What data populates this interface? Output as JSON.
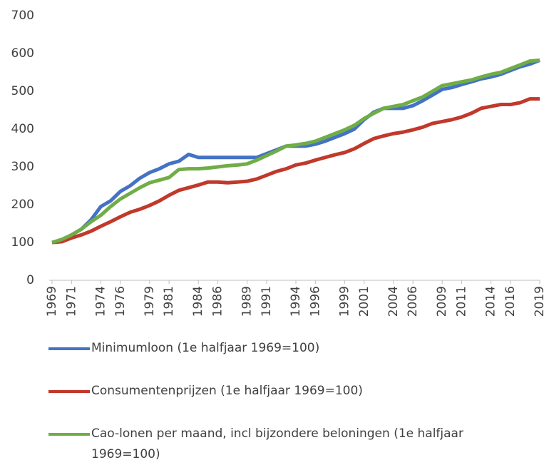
{
  "chart_data": {
    "type": "line",
    "x": [
      1969,
      1970,
      1971,
      1972,
      1973,
      1974,
      1975,
      1976,
      1977,
      1978,
      1979,
      1980,
      1981,
      1982,
      1983,
      1984,
      1985,
      1986,
      1987,
      1988,
      1989,
      1990,
      1991,
      1992,
      1993,
      1994,
      1995,
      1996,
      1997,
      1998,
      1999,
      2000,
      2001,
      2002,
      2003,
      2004,
      2005,
      2006,
      2007,
      2008,
      2009,
      2010,
      2011,
      2012,
      2013,
      2014,
      2015,
      2016,
      2017,
      2018,
      2019
    ],
    "series": [
      {
        "name": "Minimumloon (1e halfjaar 1969=100)",
        "color": "#4472c4",
        "values": [
          100,
          105,
          120,
          135,
          160,
          195,
          210,
          235,
          250,
          270,
          285,
          295,
          308,
          315,
          333,
          325,
          325,
          325,
          325,
          325,
          325,
          325,
          335,
          345,
          355,
          355,
          355,
          360,
          368,
          378,
          388,
          400,
          425,
          445,
          455,
          455,
          455,
          462,
          475,
          490,
          505,
          510,
          518,
          525,
          533,
          538,
          545,
          555,
          565,
          572,
          582
        ]
      },
      {
        "name": "Consumentenprijzen (1e halfjaar 1969=100)",
        "color": "#c0392b",
        "values": [
          100,
          102,
          112,
          120,
          130,
          143,
          155,
          168,
          180,
          188,
          198,
          210,
          225,
          238,
          245,
          252,
          260,
          260,
          258,
          260,
          262,
          268,
          278,
          288,
          295,
          305,
          310,
          318,
          325,
          332,
          338,
          348,
          362,
          375,
          382,
          388,
          392,
          398,
          405,
          415,
          420,
          425,
          432,
          442,
          455,
          460,
          465,
          465,
          470,
          480,
          480
        ]
      },
      {
        "name": "Cao-lonen per maand, incl bijzondere beloningen (1e halfjaar 1969=100)",
        "color": "#70ad47",
        "values": [
          100,
          108,
          120,
          135,
          155,
          172,
          195,
          215,
          230,
          245,
          258,
          265,
          272,
          293,
          295,
          295,
          297,
          300,
          303,
          305,
          308,
          318,
          330,
          342,
          355,
          358,
          362,
          368,
          378,
          388,
          398,
          410,
          428,
          442,
          455,
          460,
          465,
          475,
          485,
          500,
          515,
          520,
          525,
          530,
          538,
          545,
          550,
          560,
          570,
          580,
          582
        ]
      }
    ],
    "xlim": [
      1969,
      2019
    ],
    "xticks": [
      1969,
      1971,
      1974,
      1976,
      1979,
      1981,
      1984,
      1986,
      1989,
      1991,
      1994,
      1996,
      1999,
      2001,
      2004,
      2006,
      2009,
      2011,
      2014,
      2016,
      2019
    ],
    "ylim": [
      0,
      700
    ],
    "yticks": [
      0,
      100,
      200,
      300,
      400,
      500,
      600,
      700
    ],
    "grid": false
  }
}
